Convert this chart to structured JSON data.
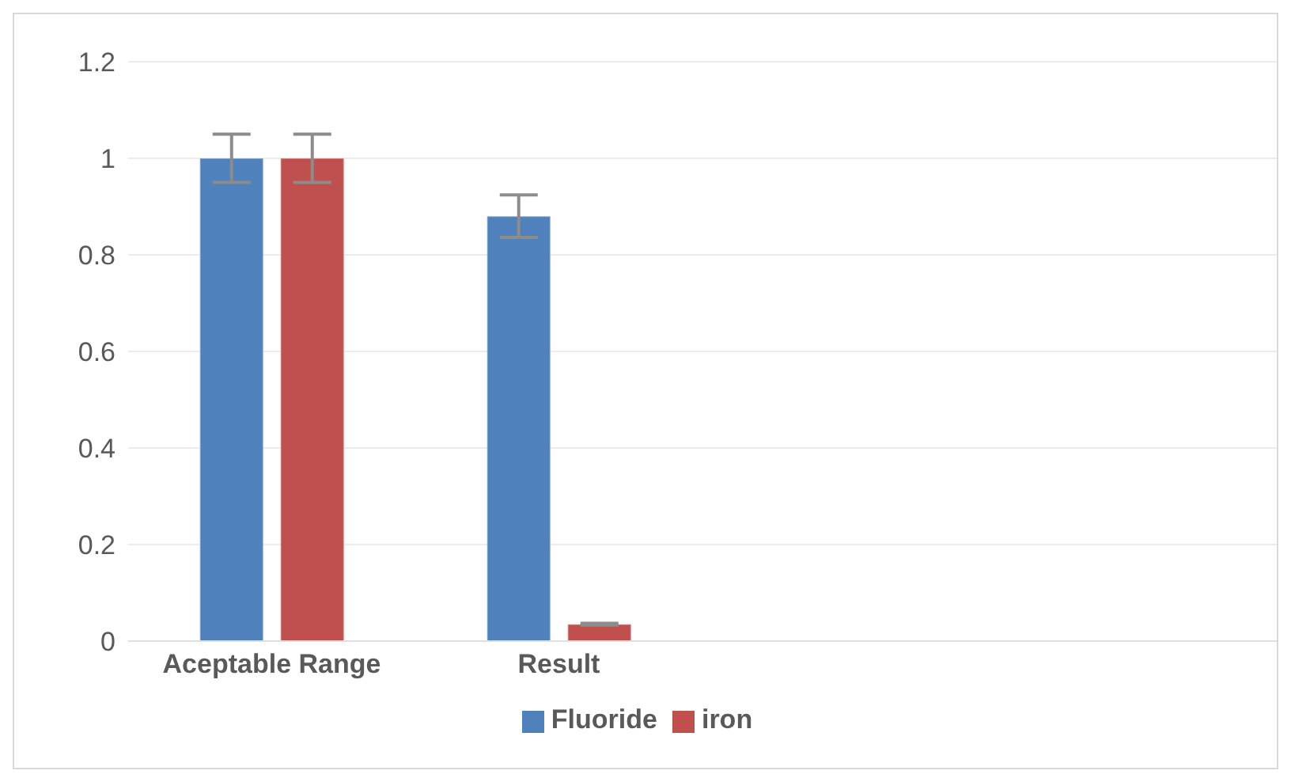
{
  "chart_data": {
    "type": "bar",
    "categories": [
      "Aceptable Range",
      "Result",
      null,
      null
    ],
    "series": [
      {
        "name": "Fluoride",
        "color": "#4f81bd",
        "values": [
          1,
          0.88,
          null,
          null
        ],
        "errors": [
          0.05,
          0.044,
          null,
          null
        ]
      },
      {
        "name": "iron",
        "color": "#c0504d",
        "values": [
          1,
          0.035,
          null,
          null
        ],
        "errors": [
          0.05,
          0.002,
          null,
          null
        ]
      }
    ],
    "ylim": [
      0,
      1.2
    ],
    "yticks": [
      0,
      0.2,
      0.4,
      0.6,
      0.8,
      1,
      1.2
    ],
    "grid": "y",
    "legend": "bottom"
  }
}
